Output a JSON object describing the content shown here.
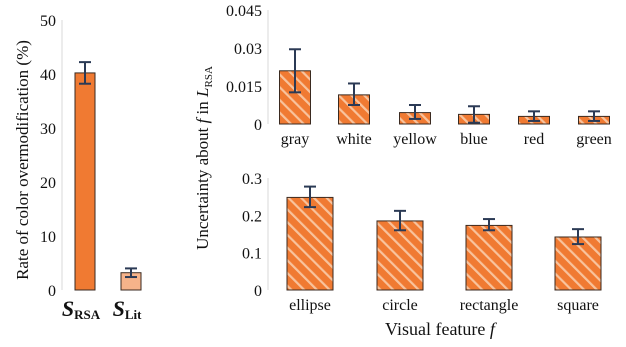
{
  "chart_data": [
    {
      "type": "bar",
      "ylabel": "Rate of color overmodification (%)",
      "ylim": [
        0,
        50
      ],
      "yticks": [
        "0",
        "10",
        "20",
        "30",
        "40",
        "50"
      ],
      "categories": [
        {
          "main": "S",
          "sub": "RSA"
        },
        {
          "main": "S",
          "sub": "Lit"
        }
      ],
      "values": [
        40.2,
        3.2
      ],
      "errors": [
        [
          38.2,
          42.2
        ],
        [
          2.4,
          4.0
        ]
      ],
      "colors": [
        "#f07a32",
        "#f6b38a"
      ],
      "grid": false
    },
    {
      "type": "bar",
      "ylabel": {
        "prefix": "Uncertainty about ",
        "var": "f",
        "mid": " in ",
        "L": "L",
        "sub": "RSA"
      },
      "ylim": [
        0,
        0.045
      ],
      "yticks": [
        "0",
        "0.015",
        "0.03",
        "0.045"
      ],
      "categories": [
        "gray",
        "white",
        "yellow",
        "blue",
        "red",
        "green"
      ],
      "values": [
        0.021,
        0.0115,
        0.0045,
        0.0038,
        0.003,
        0.003
      ],
      "errors": [
        [
          0.0125,
          0.0295
        ],
        [
          0.0075,
          0.016
        ],
        [
          0.002,
          0.0075
        ],
        [
          0.0005,
          0.007
        ],
        [
          0.0012,
          0.005
        ],
        [
          0.0012,
          0.005
        ]
      ],
      "color": "#f07a32",
      "pattern": "diagonal-stripes",
      "grid": false
    },
    {
      "type": "bar",
      "xlabel": {
        "text": "Visual feature ",
        "var": "f"
      },
      "ylim": [
        0,
        0.3
      ],
      "yticks": [
        "0",
        "0.1",
        "0.2",
        "0.3"
      ],
      "categories": [
        "ellipse",
        "circle",
        "rectangle",
        "square"
      ],
      "values": [
        0.248,
        0.185,
        0.173,
        0.142
      ],
      "errors": [
        [
          0.222,
          0.277
        ],
        [
          0.16,
          0.212
        ],
        [
          0.16,
          0.19
        ],
        [
          0.123,
          0.163
        ]
      ],
      "color": "#f07a32",
      "pattern": "diagonal-stripes",
      "grid": false
    }
  ]
}
